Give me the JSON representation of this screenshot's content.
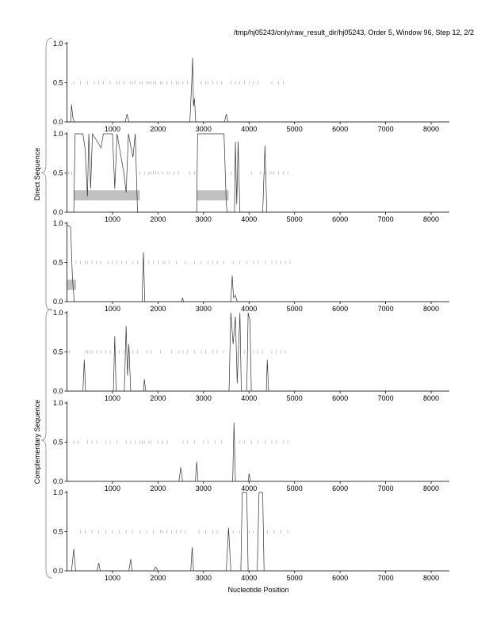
{
  "header": {
    "title": "/tmp/hj05243/only/raw_result_dir/hj05243, Order 5, Window 96, Step 12, 2/2"
  },
  "labels": {
    "direct": "Direct Sequence",
    "complementary": "Complementary Sequence",
    "xlabel": "Nucleotide Position"
  },
  "chart_data": {
    "type": "line",
    "xlabel": "Nucleotide Position",
    "xlim": [
      0,
      8400
    ],
    "ylim": [
      0,
      1
    ],
    "xticks": [
      1000,
      2000,
      3000,
      4000,
      5000,
      6000,
      7000,
      8000
    ],
    "yticks": [
      "0.0",
      "0.5",
      "1.0"
    ],
    "panels": [
      {
        "name": "direct-frame-1",
        "series": [
          [
            0,
            0
          ],
          [
            80,
            0
          ],
          [
            100,
            0.22
          ],
          [
            130,
            0.05
          ],
          [
            160,
            0
          ],
          [
            1280,
            0
          ],
          [
            1320,
            0.1
          ],
          [
            1360,
            0
          ],
          [
            2700,
            0
          ],
          [
            2740,
            0.5
          ],
          [
            2760,
            0.82
          ],
          [
            2780,
            0.2
          ],
          [
            2800,
            0.3
          ],
          [
            2830,
            0
          ],
          [
            3460,
            0
          ],
          [
            3500,
            0.1
          ],
          [
            3540,
            0
          ],
          [
            8400,
            0
          ]
        ],
        "orf_ticks": [
          150,
          300,
          450,
          600,
          700,
          800,
          950,
          1100,
          1150,
          1250,
          1400,
          1450,
          1500,
          1600,
          1650,
          1750,
          1800,
          1850,
          1900,
          1950,
          2050,
          2100,
          2200,
          2300,
          2400,
          2450,
          2550,
          2650,
          2950,
          3050,
          3100,
          3200,
          3300,
          3400,
          3600,
          3700,
          3800,
          3900,
          4000,
          4100,
          4200,
          4500,
          4650,
          4750
        ],
        "boxes": []
      },
      {
        "name": "direct-frame-2",
        "series": [
          [
            0,
            0
          ],
          [
            150,
            0
          ],
          [
            180,
            1
          ],
          [
            350,
            1
          ],
          [
            400,
            0.8
          ],
          [
            450,
            0.2
          ],
          [
            480,
            1
          ],
          [
            520,
            0.3
          ],
          [
            560,
            1
          ],
          [
            750,
            0.82
          ],
          [
            800,
            1
          ],
          [
            1000,
            1
          ],
          [
            1050,
            0.3
          ],
          [
            1100,
            1
          ],
          [
            1250,
            0.5
          ],
          [
            1300,
            0.25
          ],
          [
            1350,
            1
          ],
          [
            1450,
            0.7
          ],
          [
            1500,
            1
          ],
          [
            1550,
            0
          ],
          [
            2850,
            0
          ],
          [
            2870,
            1
          ],
          [
            3450,
            1
          ],
          [
            3500,
            0.1
          ],
          [
            3520,
            0
          ],
          [
            3680,
            0
          ],
          [
            3700,
            0.9
          ],
          [
            3730,
            0.1
          ],
          [
            3760,
            0.9
          ],
          [
            3800,
            0
          ],
          [
            4300,
            0
          ],
          [
            4350,
            0.85
          ],
          [
            4390,
            0
          ],
          [
            8400,
            0
          ]
        ],
        "orf_ticks": [
          40,
          100,
          1600,
          1700,
          1800,
          1850,
          1900,
          1950,
          2000,
          2100,
          2200,
          2250,
          2350,
          2450,
          2700,
          2800,
          3600,
          4050,
          4250,
          4350,
          4450,
          4500,
          4550,
          4650,
          4750,
          4850
        ],
        "boxes": [
          [
            150,
            1600
          ],
          [
            2850,
            3550
          ]
        ]
      },
      {
        "name": "direct-frame-3",
        "series": [
          [
            0,
            0.98
          ],
          [
            80,
            0.95
          ],
          [
            120,
            0.3
          ],
          [
            160,
            0
          ],
          [
            1650,
            0
          ],
          [
            1680,
            0.63
          ],
          [
            1710,
            0
          ],
          [
            2520,
            0
          ],
          [
            2540,
            0.05
          ],
          [
            2560,
            0
          ],
          [
            3600,
            0
          ],
          [
            3630,
            0.33
          ],
          [
            3660,
            0.05
          ],
          [
            3700,
            0.08
          ],
          [
            3740,
            0
          ],
          [
            8400,
            0
          ]
        ],
        "orf_ticks": [
          200,
          300,
          400,
          450,
          550,
          650,
          750,
          900,
          1000,
          1100,
          1200,
          1300,
          1450,
          1550,
          1800,
          1900,
          2000,
          2100,
          2150,
          2250,
          2400,
          2600,
          2800,
          2950,
          3100,
          3200,
          3300,
          3450,
          3650,
          3800,
          3950,
          4100,
          4200,
          4350,
          4500,
          4600,
          4700,
          4800,
          4900
        ],
        "boxes": [
          [
            0,
            200
          ]
        ]
      },
      {
        "name": "complementary-frame-1",
        "series": [
          [
            0,
            0
          ],
          [
            350,
            0
          ],
          [
            380,
            0.4
          ],
          [
            410,
            0
          ],
          [
            1020,
            0
          ],
          [
            1050,
            0.7
          ],
          [
            1080,
            0
          ],
          [
            1260,
            0
          ],
          [
            1300,
            0.83
          ],
          [
            1330,
            0.2
          ],
          [
            1360,
            0.6
          ],
          [
            1400,
            0
          ],
          [
            1680,
            0
          ],
          [
            1700,
            0.15
          ],
          [
            1730,
            0
          ],
          [
            3560,
            0
          ],
          [
            3600,
            1
          ],
          [
            3650,
            0.6
          ],
          [
            3700,
            0.95
          ],
          [
            3740,
            0.1
          ],
          [
            3800,
            1
          ],
          [
            3830,
            0
          ],
          [
            3950,
            0
          ],
          [
            3980,
            1
          ],
          [
            4020,
            0.9
          ],
          [
            4050,
            0
          ],
          [
            4380,
            0
          ],
          [
            4400,
            0.4
          ],
          [
            4430,
            0
          ],
          [
            8400,
            0
          ]
        ],
        "orf_ticks": [
          50,
          400,
          450,
          500,
          550,
          650,
          750,
          850,
          950,
          1150,
          1250,
          1450,
          1550,
          1750,
          1850,
          2050,
          2300,
          2450,
          2550,
          2650,
          2800,
          2950,
          3050,
          3200,
          3300,
          3450,
          3900,
          4100,
          4200,
          4300,
          4500,
          4600,
          4700,
          4800
        ],
        "boxes": []
      },
      {
        "name": "complementary-frame-2",
        "series": [
          [
            0,
            0
          ],
          [
            2460,
            0
          ],
          [
            2500,
            0.18
          ],
          [
            2540,
            0
          ],
          [
            2820,
            0
          ],
          [
            2850,
            0.25
          ],
          [
            2880,
            0
          ],
          [
            3640,
            0
          ],
          [
            3670,
            0.75
          ],
          [
            3700,
            0
          ],
          [
            3980,
            0
          ],
          [
            4000,
            0.1
          ],
          [
            4030,
            0
          ],
          [
            8400,
            0
          ]
        ],
        "orf_ticks": [
          150,
          250,
          450,
          550,
          650,
          850,
          950,
          1100,
          1300,
          1400,
          1500,
          1600,
          1650,
          1700,
          1800,
          1850,
          2000,
          2100,
          2200,
          2550,
          2650,
          2800,
          3000,
          3100,
          3250,
          3400,
          3800,
          3900,
          4050,
          4200,
          4350,
          4500,
          4600,
          4750,
          4850
        ],
        "boxes": []
      },
      {
        "name": "complementary-frame-3",
        "series": [
          [
            0,
            0
          ],
          [
            100,
            0
          ],
          [
            150,
            0.28
          ],
          [
            190,
            0
          ],
          [
            660,
            0
          ],
          [
            700,
            0.1
          ],
          [
            730,
            0
          ],
          [
            1360,
            0
          ],
          [
            1400,
            0.15
          ],
          [
            1430,
            0
          ],
          [
            1900,
            0
          ],
          [
            1950,
            0.05
          ],
          [
            2000,
            0
          ],
          [
            2720,
            0
          ],
          [
            2750,
            0.3
          ],
          [
            2780,
            0
          ],
          [
            3500,
            0
          ],
          [
            3550,
            0.55
          ],
          [
            3600,
            0
          ],
          [
            3820,
            0
          ],
          [
            3850,
            1
          ],
          [
            3950,
            1
          ],
          [
            3980,
            0
          ],
          [
            4180,
            0
          ],
          [
            4220,
            1
          ],
          [
            4300,
            1
          ],
          [
            4330,
            0
          ],
          [
            8400,
            0
          ]
        ],
        "orf_ticks": [
          300,
          400,
          550,
          700,
          850,
          1000,
          1150,
          1300,
          1450,
          1600,
          1750,
          1900,
          2050,
          2100,
          2200,
          2300,
          2400,
          2500,
          2600,
          2900,
          3050,
          3200,
          3300,
          3650,
          3800,
          4000,
          4100,
          4400,
          4550,
          4700,
          4850
        ],
        "boxes": []
      }
    ]
  }
}
